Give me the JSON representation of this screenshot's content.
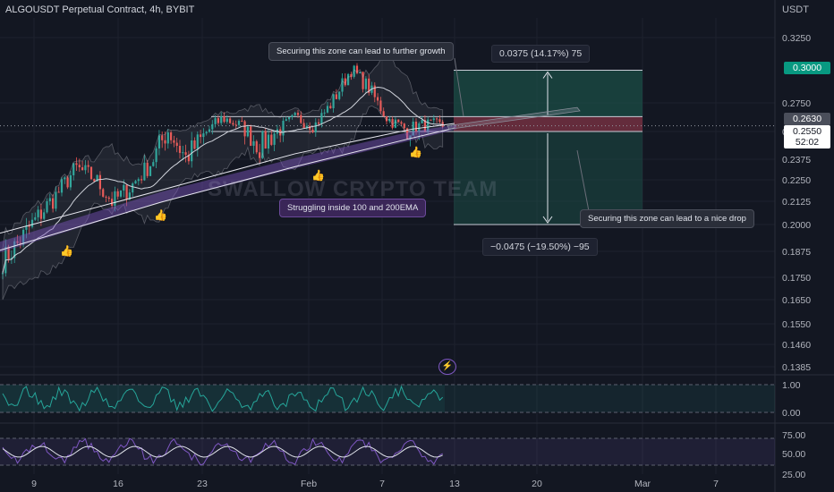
{
  "header": {
    "title": "ALGOUSDT Perpetual Contract, 4h, BYBIT",
    "currency": "USDT"
  },
  "price_axis": {
    "ticks": [
      "0.3250",
      "0.2750",
      "0.2500",
      "0.2375",
      "0.2250",
      "0.2125",
      "0.2000",
      "0.1875",
      "0.1750",
      "0.1650",
      "0.1550",
      "0.1460",
      "0.1385"
    ],
    "tick_values": [
      0.325,
      0.275,
      0.25,
      0.2375,
      0.225,
      0.2125,
      0.2,
      0.1875,
      0.175,
      0.165,
      0.155,
      0.146,
      0.1385
    ]
  },
  "price_tags": {
    "target": "0.3000",
    "upper_zone": "0.2630",
    "current": "0.2550",
    "countdown": "52:02"
  },
  "time_axis": {
    "labels": [
      "9",
      "16",
      "23",
      "Feb",
      "7",
      "13",
      "20",
      "Mar",
      "7"
    ]
  },
  "indicator1_axis": {
    "labels": [
      "1.00",
      "0.00"
    ]
  },
  "indicator2_axis": {
    "labels": [
      "75.00",
      "50.00",
      "25.00"
    ]
  },
  "annotations": {
    "growth": "Securing this zone can lead to further growth",
    "drop": "Securing this zone can lead to a nice drop",
    "ema": "Struggling inside 100 and 200EMA",
    "long_stats": "0.0375 (14.17%) 75",
    "short_stats": "−0.0475 (−19.50%) −95"
  },
  "watermark": "SWALLOW CRYPTO TEAM",
  "colors": {
    "background": "#131722",
    "up": "#26a69a",
    "down": "#ef5350",
    "profit_zone": "#1b4d46",
    "loss_zone": "#6d2a3c",
    "ema_band": "#7e57c2",
    "target_tag": "#089981"
  },
  "chart_data": {
    "type": "candlestick",
    "symbol": "ALGOUSDT",
    "timeframe": "4h",
    "ylim": [
      0.1385,
      0.325
    ],
    "levels": {
      "target": 0.3,
      "zone_top": 0.263,
      "entry": 0.255,
      "zone_bottom": 0.25,
      "stop": 0.2
    },
    "long_position": {
      "change": 0.0375,
      "percent": 14.17,
      "ticks": 75
    },
    "short_position": {
      "change": -0.0475,
      "percent": -19.5,
      "ticks": -95
    },
    "swing_path": [
      [
        "9",
        0.183
      ],
      [
        "",
        0.193
      ],
      [
        "",
        0.205
      ],
      [
        "",
        0.217
      ],
      [
        "16",
        0.232
      ],
      [
        "",
        0.226
      ],
      [
        "",
        0.212
      ],
      [
        "",
        0.221
      ],
      [
        "",
        0.234
      ],
      [
        "23",
        0.251
      ],
      [
        "",
        0.238
      ],
      [
        "",
        0.248
      ],
      [
        "",
        0.262
      ],
      [
        "",
        0.255
      ],
      [
        "Feb",
        0.243
      ],
      [
        "",
        0.251
      ],
      [
        "",
        0.262
      ],
      [
        "",
        0.255
      ],
      [
        "7",
        0.276
      ],
      [
        "",
        0.301
      ],
      [
        "",
        0.286
      ],
      [
        "",
        0.261
      ],
      [
        "",
        0.252
      ],
      [
        "",
        0.256
      ],
      [
        "",
        0.255
      ]
    ]
  }
}
